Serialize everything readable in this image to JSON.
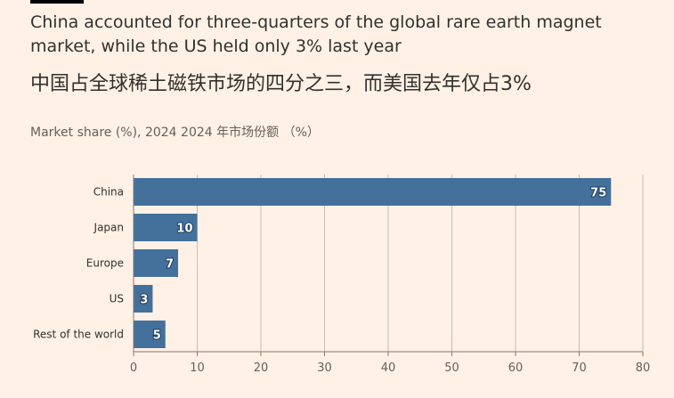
{
  "header": {
    "title": "China accounted for three-quarters of the global rare earth magnet market, while the US held only 3% last year",
    "title_zh": "中国占全球稀土磁铁市场的四分之三，而美国去年仅占3%",
    "subtitle": "Market share (%), 2024  2024 年市场份额 （%）"
  },
  "chart_data": {
    "type": "bar",
    "orientation": "horizontal",
    "categories": [
      "China",
      "Japan",
      "Europe",
      "US",
      "Rest of the world"
    ],
    "values": [
      75,
      10,
      7,
      3,
      5
    ],
    "data_labels": [
      "75",
      "10",
      "7",
      "3",
      "5"
    ],
    "xlim": [
      0,
      80
    ],
    "xticks": [
      "0",
      "10",
      "20",
      "30",
      "40",
      "50",
      "60",
      "70",
      "80"
    ],
    "grid": "vertical",
    "bar_color": "#44709c"
  }
}
